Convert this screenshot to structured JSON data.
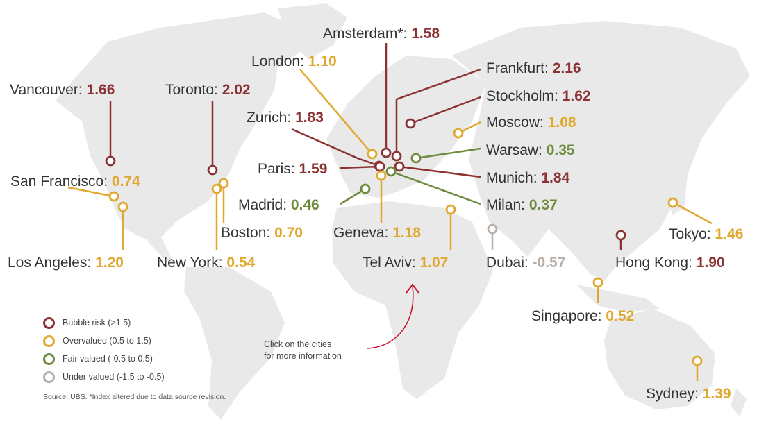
{
  "colors": {
    "bubble": "#8B3333",
    "overvalued": "#E0A82E",
    "fair": "#6E8B3D",
    "under": "#B8B0A8",
    "text": "#333333",
    "land": "#E9E9E9"
  },
  "cities": [
    {
      "name": "Amsterdam*:",
      "value": "1.58",
      "category": "bubble"
    },
    {
      "name": "London:",
      "value": "1.10",
      "category": "overvalued"
    },
    {
      "name": "Frankfurt:",
      "value": "2.16",
      "category": "bubble"
    },
    {
      "name": "Vancouver:",
      "value": "1.66",
      "category": "bubble"
    },
    {
      "name": "Toronto:",
      "value": "2.02",
      "category": "bubble"
    },
    {
      "name": "Stockholm:",
      "value": "1.62",
      "category": "bubble"
    },
    {
      "name": "Zurich:",
      "value": "1.83",
      "category": "bubble"
    },
    {
      "name": "Moscow:",
      "value": "1.08",
      "category": "overvalued"
    },
    {
      "name": "Warsaw:",
      "value": "0.35",
      "category": "fair"
    },
    {
      "name": "Paris:",
      "value": "1.59",
      "category": "bubble"
    },
    {
      "name": "Munich:",
      "value": "1.84",
      "category": "bubble"
    },
    {
      "name": "San Francisco:",
      "value": "0.74",
      "category": "overvalued"
    },
    {
      "name": "Madrid:",
      "value": "0.46",
      "category": "fair"
    },
    {
      "name": "Milan:",
      "value": "0.37",
      "category": "fair"
    },
    {
      "name": "Boston:",
      "value": "0.70",
      "category": "overvalued"
    },
    {
      "name": "Geneva:",
      "value": "1.18",
      "category": "overvalued"
    },
    {
      "name": "Tokyo:",
      "value": "1.46",
      "category": "overvalued"
    },
    {
      "name": "Los Angeles:",
      "value": "1.20",
      "category": "overvalued"
    },
    {
      "name": "New York:",
      "value": "0.54",
      "category": "overvalued"
    },
    {
      "name": "Tel Aviv:",
      "value": "1.07",
      "category": "overvalued"
    },
    {
      "name": "Dubai:",
      "value": "-0.57",
      "category": "under"
    },
    {
      "name": "Hong Kong:",
      "value": "1.90",
      "category": "bubble"
    },
    {
      "name": "Singapore:",
      "value": "0.52",
      "category": "overvalued"
    },
    {
      "name": "Sydney:",
      "value": "1.39",
      "category": "overvalued"
    }
  ],
  "legend": [
    {
      "label": "Bubble risk (>1.5)",
      "category": "bubble"
    },
    {
      "label": "Overvalued (0.5 to 1.5)",
      "category": "overvalued"
    },
    {
      "label": "Fair valued (-0.5 to 0.5)",
      "category": "fair"
    },
    {
      "label": "Under valued (-1.5 to -0.5)",
      "category": "under"
    }
  ],
  "hint": {
    "line1": "Click on the cities",
    "line2": "for more information"
  },
  "source": "Source: UBS. *Index altered due to data source revision."
}
